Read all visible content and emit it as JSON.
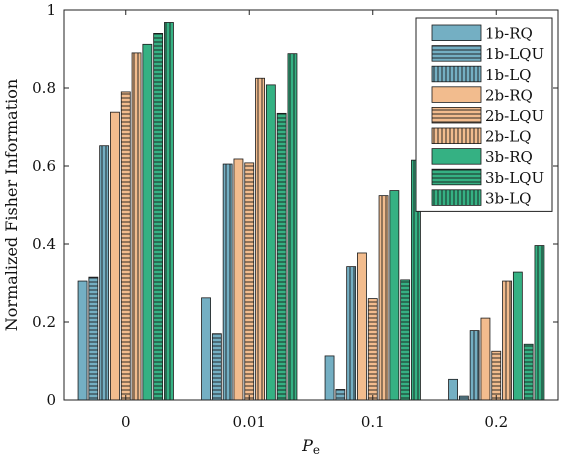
{
  "chart_data": {
    "type": "bar",
    "xlabel_var": "P",
    "xlabel_sub": "e",
    "ylabel": "Normalized Fisher Information",
    "categories": [
      "0",
      "0.01",
      "0.1",
      "0.2"
    ],
    "ylim": [
      0,
      1
    ],
    "yticks": [
      "0",
      "0.2",
      "0.4",
      "0.6",
      "0.8",
      "1"
    ],
    "legend_position": "top-right",
    "grid": false,
    "series": [
      {
        "name": "1b-RQ",
        "color": "#74afc3",
        "pattern": "solid",
        "values": [
          0.305,
          0.262,
          0.113,
          0.053
        ]
      },
      {
        "name": "1b-LQU",
        "color": "#74afc3",
        "pattern": "horizontal",
        "values": [
          0.315,
          0.17,
          0.027,
          0.01
        ]
      },
      {
        "name": "1b-LQ",
        "color": "#74afc3",
        "pattern": "vertical",
        "values": [
          0.652,
          0.605,
          0.342,
          0.178
        ]
      },
      {
        "name": "2b-RQ",
        "color": "#f2bc8e",
        "pattern": "solid",
        "values": [
          0.738,
          0.618,
          0.377,
          0.21
        ]
      },
      {
        "name": "2b-LQU",
        "color": "#f2bc8e",
        "pattern": "horizontal",
        "values": [
          0.79,
          0.608,
          0.26,
          0.125
        ]
      },
      {
        "name": "2b-LQ",
        "color": "#f2bc8e",
        "pattern": "vertical",
        "values": [
          0.89,
          0.825,
          0.524,
          0.305
        ]
      },
      {
        "name": "3b-RQ",
        "color": "#35b183",
        "pattern": "solid",
        "values": [
          0.912,
          0.808,
          0.537,
          0.328
        ]
      },
      {
        "name": "3b-LQU",
        "color": "#35b183",
        "pattern": "horizontal",
        "values": [
          0.94,
          0.735,
          0.308,
          0.143
        ]
      },
      {
        "name": "3b-LQ",
        "color": "#35b183",
        "pattern": "vertical",
        "values": [
          0.968,
          0.888,
          0.615,
          0.396
        ]
      }
    ]
  }
}
